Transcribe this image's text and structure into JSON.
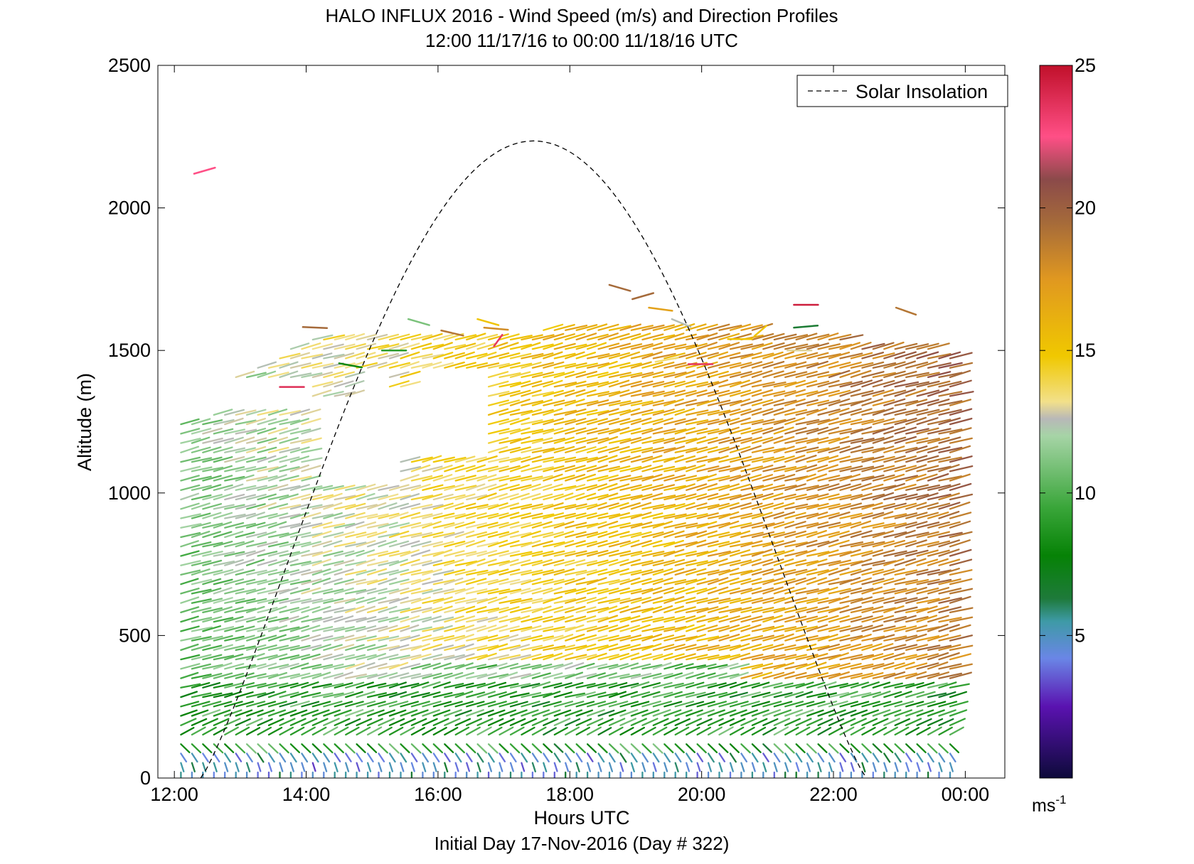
{
  "chart_data": {
    "type": "wind-barb-profile",
    "title": "HALO INFLUX 2016 - Wind Speed (m/s) and Direction Profiles",
    "subtitle": "12:00 11/17/16 to 00:00 11/18/16  UTC",
    "xlabel": "Hours UTC",
    "ylabel": "Altitude (m)",
    "footer": "Initial Day 17-Nov-2016 (Day # 322)",
    "xlim": [
      11.75,
      24.6
    ],
    "ylim": [
      0,
      2500
    ],
    "x_ticks": [
      {
        "value": 12,
        "label": "12:00"
      },
      {
        "value": 14,
        "label": "14:00"
      },
      {
        "value": 16,
        "label": "16:00"
      },
      {
        "value": 18,
        "label": "18:00"
      },
      {
        "value": 20,
        "label": "20:00"
      },
      {
        "value": 22,
        "label": "22:00"
      },
      {
        "value": 24,
        "label": "00:00"
      }
    ],
    "y_ticks": [
      {
        "value": 0,
        "label": "0"
      },
      {
        "value": 500,
        "label": "500"
      },
      {
        "value": 1000,
        "label": "1000"
      },
      {
        "value": 1500,
        "label": "1500"
      },
      {
        "value": 2000,
        "label": "2000"
      },
      {
        "value": 2500,
        "label": "2500"
      }
    ],
    "legend": {
      "label": "Solar Insolation",
      "placement": "top-right"
    },
    "colorbar": {
      "range": [
        0,
        25
      ],
      "unit_base": "ms",
      "unit_exp": "-1",
      "ticks": [
        {
          "value": 5,
          "label": "5"
        },
        {
          "value": 10,
          "label": "10"
        },
        {
          "value": 15,
          "label": "15"
        },
        {
          "value": 20,
          "label": "20"
        },
        {
          "value": 25,
          "label": "25"
        }
      ],
      "stops": [
        {
          "v": 0,
          "c": "#0d0a3a"
        },
        {
          "v": 2.5,
          "c": "#5a12b0"
        },
        {
          "v": 4.2,
          "c": "#6a86e6"
        },
        {
          "v": 5.5,
          "c": "#3e9aa6"
        },
        {
          "v": 6.3,
          "c": "#1e7a3a"
        },
        {
          "v": 7.8,
          "c": "#068206"
        },
        {
          "v": 9.5,
          "c": "#3aa63a"
        },
        {
          "v": 12.0,
          "c": "#a6d4a6"
        },
        {
          "v": 12.6,
          "c": "#b8b8b8"
        },
        {
          "v": 13.2,
          "c": "#f2e08a"
        },
        {
          "v": 14.8,
          "c": "#f0c800"
        },
        {
          "v": 17.5,
          "c": "#e09820"
        },
        {
          "v": 19.5,
          "c": "#a56a3a"
        },
        {
          "v": 21.0,
          "c": "#8b4a4a"
        },
        {
          "v": 22.5,
          "c": "#ff4f86"
        },
        {
          "v": 25,
          "c": "#c0102a"
        }
      ]
    },
    "solar_insolation": {
      "style": "dashed",
      "color": "#000000",
      "sunrise_hour": 12.4,
      "sunset_hour": 22.5,
      "peak_hour": 17.45,
      "peak_altitude": 2235
    },
    "profiles": {
      "hours_start": 12.1,
      "hours_step": 0.1667,
      "hours_end": 23.85,
      "altitude_step": 33,
      "note": "values sampled from the figure: speed (m/s) and direction vectors per time/altitude"
    },
    "upper_outliers": [
      {
        "hour": 12.3,
        "alt": 2120,
        "speed": 22.5,
        "dir_deg": 300
      },
      {
        "hour": 13.95,
        "alt": 1582,
        "speed": 19.5,
        "dir_deg": 265
      },
      {
        "hour": 13.6,
        "alt": 1372,
        "speed": 23.8,
        "dir_deg": 270
      },
      {
        "hour": 14.5,
        "alt": 1455,
        "speed": 8.0,
        "dir_deg": 250
      },
      {
        "hour": 15.15,
        "alt": 1500,
        "speed": 9.0,
        "dir_deg": 270
      },
      {
        "hour": 15.55,
        "alt": 1610,
        "speed": 11.0,
        "dir_deg": 240
      },
      {
        "hour": 16.05,
        "alt": 1570,
        "speed": 19.0,
        "dir_deg": 245
      },
      {
        "hour": 16.6,
        "alt": 1610,
        "speed": 15.0,
        "dir_deg": 240
      },
      {
        "hour": 16.7,
        "alt": 1580,
        "speed": 18.0,
        "dir_deg": 260
      },
      {
        "hour": 16.85,
        "alt": 1515,
        "speed": 23.5,
        "dir_deg": 340
      },
      {
        "hour": 18.6,
        "alt": 1730,
        "speed": 19.5,
        "dir_deg": 240
      },
      {
        "hour": 18.95,
        "alt": 1680,
        "speed": 19.5,
        "dir_deg": 300
      },
      {
        "hour": 19.2,
        "alt": 1650,
        "speed": 17.0,
        "dir_deg": 255
      },
      {
        "hour": 19.55,
        "alt": 1610,
        "speed": 12.5,
        "dir_deg": 230
      },
      {
        "hour": 19.3,
        "alt": 1460,
        "speed": 13.5,
        "dir_deg": 290
      },
      {
        "hour": 19.8,
        "alt": 1452,
        "speed": 23.5,
        "dir_deg": 270
      },
      {
        "hour": 20.4,
        "alt": 1540,
        "speed": 15.0,
        "dir_deg": 270
      },
      {
        "hour": 20.8,
        "alt": 1550,
        "speed": 15.0,
        "dir_deg": 330
      },
      {
        "hour": 21.4,
        "alt": 1660,
        "speed": 24.5,
        "dir_deg": 270
      },
      {
        "hour": 21.4,
        "alt": 1580,
        "speed": 6.5,
        "dir_deg": 280
      },
      {
        "hour": 21.3,
        "alt": 1500,
        "speed": 13.0,
        "dir_deg": 270
      },
      {
        "hour": 22.95,
        "alt": 1650,
        "speed": 19.0,
        "dir_deg": 235
      }
    ]
  }
}
